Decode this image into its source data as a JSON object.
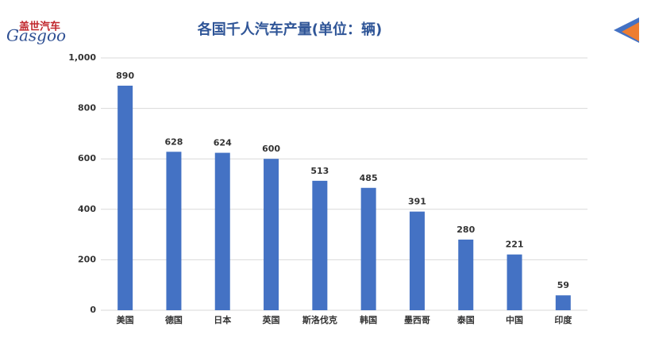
{
  "logo": {
    "name": "盖世汽车",
    "brand": "Gasgoo"
  },
  "chart_data": {
    "type": "bar",
    "title": "各国千人汽车产量(单位：辆)",
    "categories": [
      "美国",
      "德国",
      "日本",
      "英国",
      "斯洛伐克",
      "韩国",
      "墨西哥",
      "泰国",
      "中国",
      "印度"
    ],
    "values": [
      890,
      628,
      624,
      600,
      513,
      485,
      391,
      280,
      221,
      59
    ],
    "color": "#4472c4",
    "ylim": [
      0,
      1000
    ],
    "yticks": [
      0,
      200,
      400,
      600,
      800,
      {
        "value": 1000,
        "label": "1,000"
      }
    ],
    "grid": true
  }
}
